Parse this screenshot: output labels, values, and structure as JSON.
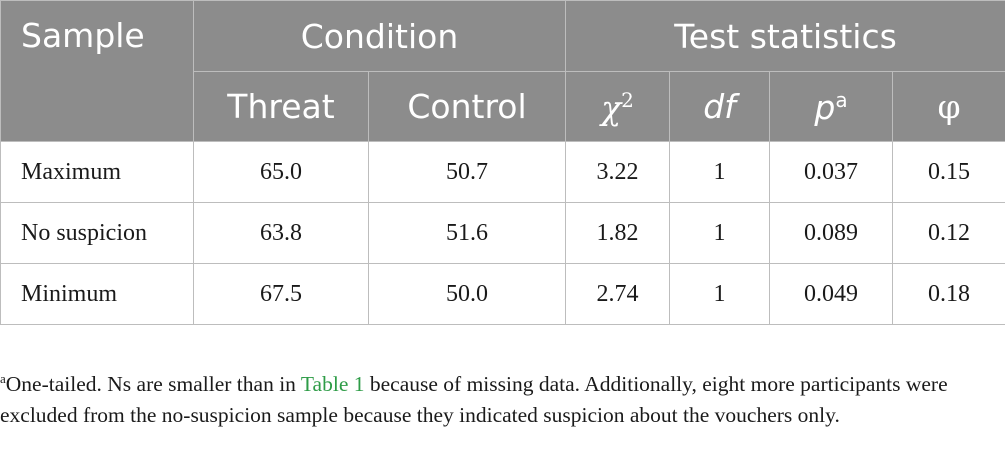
{
  "table": {
    "headers": {
      "sample": "Sample",
      "condition": "Condition",
      "test_statistics": "Test statistics",
      "threat": "Threat",
      "control": "Control",
      "chi_symbol": "χ",
      "chi_sup": "2",
      "df": "df",
      "p": "p",
      "p_sup": "a",
      "phi": "φ"
    },
    "rows": [
      {
        "sample": "Maximum",
        "threat": "65.0",
        "control": "50.7",
        "chi2": "3.22",
        "df": "1",
        "p": "0.037",
        "phi": "0.15"
      },
      {
        "sample": "No suspicion",
        "threat": "63.8",
        "control": "51.6",
        "chi2": "1.82",
        "df": "1",
        "p": "0.089",
        "phi": "0.12"
      },
      {
        "sample": "Minimum",
        "threat": "67.5",
        "control": "50.0",
        "chi2": "2.74",
        "df": "1",
        "p": "0.049",
        "phi": "0.18"
      }
    ]
  },
  "footnote": {
    "marker": "a",
    "text_before": "One-tailed. Ns are smaller than in ",
    "link": "Table 1",
    "text_after": " because of missing data. Additionally, eight more participants were excluded from the no-suspicion sample because they indicated suspicion about the vouchers only."
  },
  "colors": {
    "header_bg": "#8c8c8c",
    "header_text": "#ffffff",
    "grid": "#bdbdbd",
    "link": "#2e9c47"
  }
}
